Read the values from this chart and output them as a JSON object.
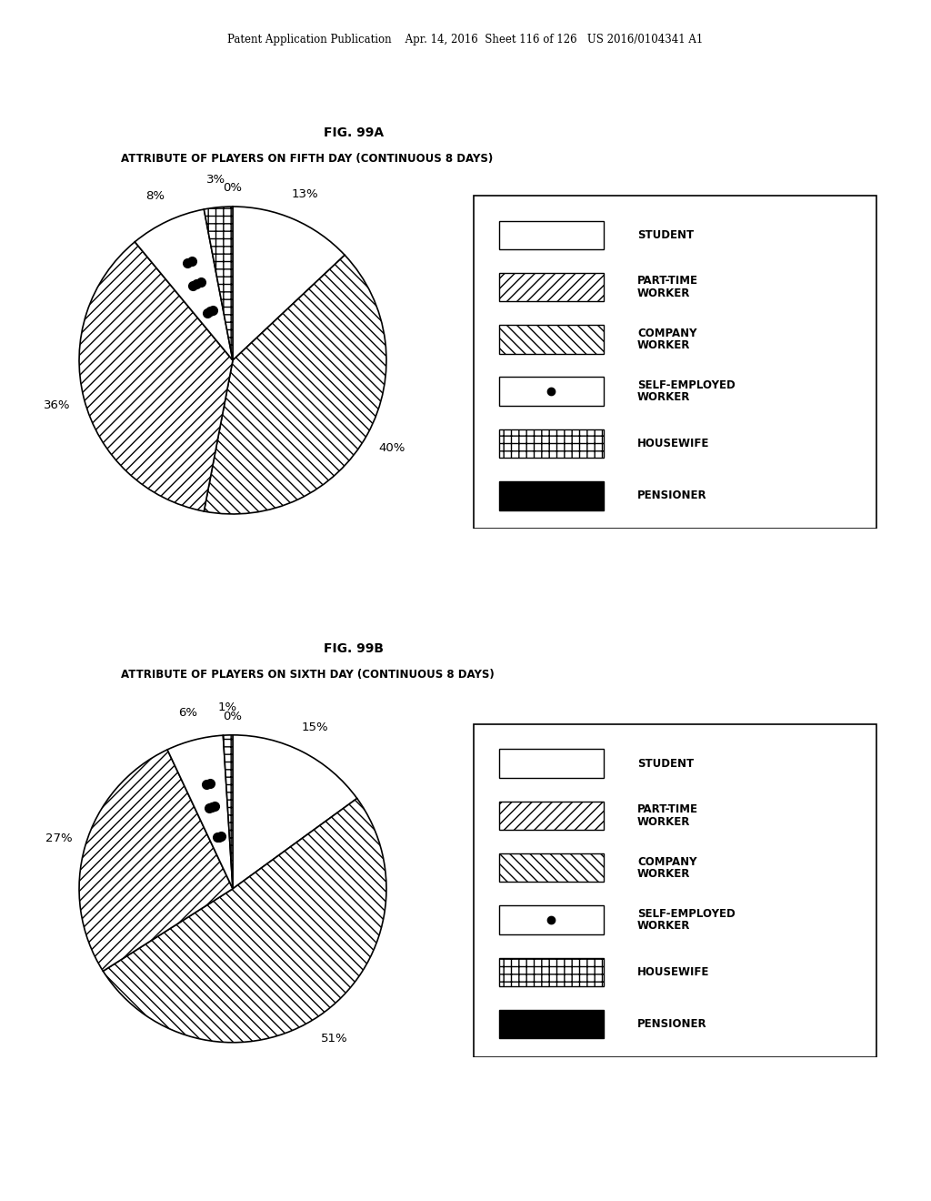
{
  "header_text": "Patent Application Publication    Apr. 14, 2016  Sheet 116 of 126   US 2016/0104341 A1",
  "fig_a_label": "FIG. 99A",
  "fig_b_label": "FIG. 99B",
  "title_a": "ATTRIBUTE OF PLAYERS ON FIFTH DAY (CONTINUOUS 8 DAYS)",
  "title_b": "ATTRIBUTE OF PLAYERS ON SIXTH DAY (CONTINUOUS 8 DAYS)",
  "pie_order_a": [
    0,
    13,
    40,
    36,
    8,
    3
  ],
  "pie_labels_a": [
    "0%",
    "13%",
    "40%",
    "36%",
    "8%",
    "3%"
  ],
  "pie_order_b": [
    0,
    15,
    51,
    27,
    6,
    1
  ],
  "pie_labels_b": [
    "0%",
    "15%",
    "51%",
    "27%",
    "6%",
    "1%"
  ],
  "legend_labels": [
    "STUDENT",
    "PART-TIME\nWORKER",
    "COMPANY\nWORKER",
    "SELF-EMPLOYED\nWORKER",
    "HOUSEWIFE",
    "PENSIONER"
  ],
  "background_color": "#ffffff"
}
